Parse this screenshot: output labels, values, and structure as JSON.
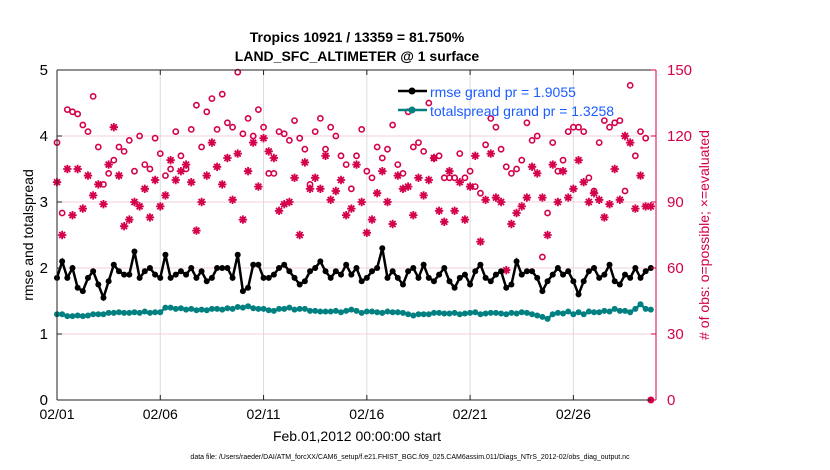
{
  "chart_data": {
    "type": "line",
    "title": "Tropics 10921 / 13359 = 81.750%",
    "subtitle": "LAND_SFC_ALTIMETER @ 1 surface",
    "xlabel": "Feb.01,2012 00:00:00 start",
    "ylabel": "rmse and totalspread",
    "y2label": "# of obs: o=possible; ×=evaluated",
    "footer": "data file: /Users/raeder/DAI/ATM_forcXX/CAM6_setup/f.e21.FHIST_BGC.f09_025.CAM6assim.011/Diags_NTrS_2012-02/obs_diag_output.nc",
    "x_tick_labels": [
      "02/01",
      "02/06",
      "02/11",
      "02/16",
      "02/21",
      "02/26"
    ],
    "x_tick_days": [
      0,
      5,
      10,
      15,
      20,
      25
    ],
    "xlim_days": [
      0,
      29
    ],
    "ylim": [
      0,
      5
    ],
    "y_ticks": [
      0,
      1,
      2,
      3,
      4,
      5
    ],
    "y2lim": [
      0,
      150
    ],
    "y2_ticks": [
      0,
      30,
      60,
      90,
      120,
      150
    ],
    "grid": true,
    "legend_position": "top-right",
    "colors": {
      "rmse": "#000000",
      "spread": "#008080",
      "obs": "#d4004c",
      "legend_text": "#1a5cff"
    },
    "step_days": 0.25,
    "series": [
      {
        "name": "rmse grand pr = 1.9055",
        "axis": "left",
        "values": [
          1.85,
          2.1,
          1.85,
          2.0,
          1.7,
          1.65,
          1.85,
          1.95,
          1.75,
          1.55,
          1.8,
          2.05,
          1.95,
          1.9,
          1.9,
          2.25,
          1.85,
          1.95,
          2.0,
          1.9,
          1.85,
          2.2,
          1.85,
          1.9,
          1.95,
          1.9,
          2.0,
          1.85,
          1.95,
          1.8,
          1.85,
          2.0,
          2.0,
          2.0,
          1.85,
          2.2,
          1.65,
          1.7,
          2.05,
          2.05,
          1.85,
          1.85,
          1.9,
          2.0,
          2.05,
          1.95,
          1.85,
          1.75,
          1.8,
          1.95,
          2.0,
          2.1,
          1.95,
          1.85,
          1.95,
          1.9,
          2.05,
          1.9,
          2.0,
          1.8,
          1.85,
          1.95,
          2.0,
          2.3,
          1.85,
          1.95,
          1.85,
          1.75,
          1.95,
          2.0,
          1.85,
          2.05,
          1.85,
          1.8,
          1.9,
          2.0,
          1.8,
          1.7,
          1.85,
          1.9,
          1.75,
          1.95,
          2.05,
          1.85,
          1.8,
          1.9,
          1.95,
          1.7,
          1.75,
          2.1,
          1.9,
          1.95,
          1.95,
          1.85,
          1.65,
          1.8,
          1.9,
          2.0,
          1.9,
          1.95,
          1.8,
          1.6,
          1.8,
          1.95,
          2.0,
          1.85,
          1.9,
          2.05,
          1.8,
          1.75,
          1.9,
          1.85,
          2.0,
          1.85,
          1.95,
          2.0
        ]
      },
      {
        "name": "totalspread grand pr = 1.3258",
        "axis": "left",
        "values": [
          1.3,
          1.3,
          1.27,
          1.27,
          1.28,
          1.27,
          1.28,
          1.3,
          1.3,
          1.3,
          1.32,
          1.32,
          1.33,
          1.32,
          1.32,
          1.33,
          1.32,
          1.34,
          1.32,
          1.33,
          1.33,
          1.4,
          1.4,
          1.38,
          1.39,
          1.37,
          1.38,
          1.36,
          1.37,
          1.36,
          1.38,
          1.38,
          1.37,
          1.39,
          1.38,
          1.41,
          1.4,
          1.42,
          1.39,
          1.38,
          1.38,
          1.36,
          1.35,
          1.38,
          1.38,
          1.4,
          1.37,
          1.38,
          1.38,
          1.35,
          1.35,
          1.34,
          1.34,
          1.34,
          1.35,
          1.33,
          1.35,
          1.37,
          1.35,
          1.32,
          1.34,
          1.34,
          1.33,
          1.32,
          1.34,
          1.33,
          1.33,
          1.32,
          1.3,
          1.28,
          1.3,
          1.3,
          1.3,
          1.32,
          1.32,
          1.31,
          1.31,
          1.32,
          1.3,
          1.31,
          1.32,
          1.33,
          1.3,
          1.31,
          1.32,
          1.32,
          1.31,
          1.3,
          1.32,
          1.31,
          1.33,
          1.32,
          1.3,
          1.28,
          1.26,
          1.23,
          1.3,
          1.32,
          1.31,
          1.34,
          1.3,
          1.33,
          1.3,
          1.34,
          1.33,
          1.33,
          1.35,
          1.34,
          1.38,
          1.35,
          1.35,
          1.33,
          1.38,
          1.45,
          1.38,
          1.37
        ]
      },
      {
        "name": "possible",
        "axis": "right",
        "marker": "o",
        "values": [
          117,
          85,
          132,
          131,
          130,
          125,
          122,
          138,
          115,
          98,
          103,
          109,
          115,
          113,
          118,
          104,
          120,
          107,
          105,
          119,
          112,
          102,
          105,
          122,
          111,
          105,
          123,
          134,
          115,
          131,
          137,
          123,
          139,
          126,
          124,
          149,
          121,
          128,
          120,
          132,
          124,
          103,
          103,
          122,
          121,
          118,
          127,
          119,
          114,
          98,
          122,
          128,
          114,
          124,
          120,
          111,
          107,
          96,
          111,
          123,
          104,
          101,
          115,
          110,
          114,
          125,
          107,
          103,
          131,
          115,
          117,
          113,
          135,
          110,
          111,
          101,
          101,
          101,
          112,
          101,
          104,
          97,
          94,
          116,
          128,
          124,
          114,
          106,
          103,
          105,
          109,
          126,
          118,
          120,
          65,
          85,
          117,
          104,
          109,
          122,
          124,
          124,
          122,
          101,
          95,
          117,
          127,
          124,
          126,
          127,
          95,
          143,
          111,
          122,
          119,
          0
        ]
      },
      {
        "name": "evaluated",
        "axis": "right",
        "marker": "*",
        "values": [
          99,
          75,
          105,
          84,
          105,
          87,
          102,
          93,
          98,
          89,
          107,
          124,
          102,
          79,
          82,
          90,
          88,
          96,
          83,
          100,
          88,
          93,
          109,
          100,
          104,
          107,
          99,
          77,
          90,
          102,
          117,
          106,
          98,
          110,
          91,
          112,
          82,
          104,
          117,
          97,
          119,
          113,
          110,
          86,
          89,
          90,
          101,
          75,
          108,
          96,
          101,
          96,
          111,
          91,
          95,
          100,
          84,
          87,
          107,
          90,
          76,
          82,
          94,
          104,
          90,
          80,
          102,
          96,
          97,
          84,
          101,
          93,
          100,
          110,
          86,
          81,
          104,
          86,
          99,
          82,
          97,
          111,
          72,
          91,
          112,
          92,
          90,
          59,
          80,
          85,
          88,
          92,
          106,
          103,
          92,
          75,
          107,
          90,
          104,
          92,
          96,
          109,
          99,
          90,
          94,
          91,
          83,
          89,
          105,
          91,
          120,
          117,
          87,
          102,
          88,
          88
        ]
      }
    ]
  }
}
